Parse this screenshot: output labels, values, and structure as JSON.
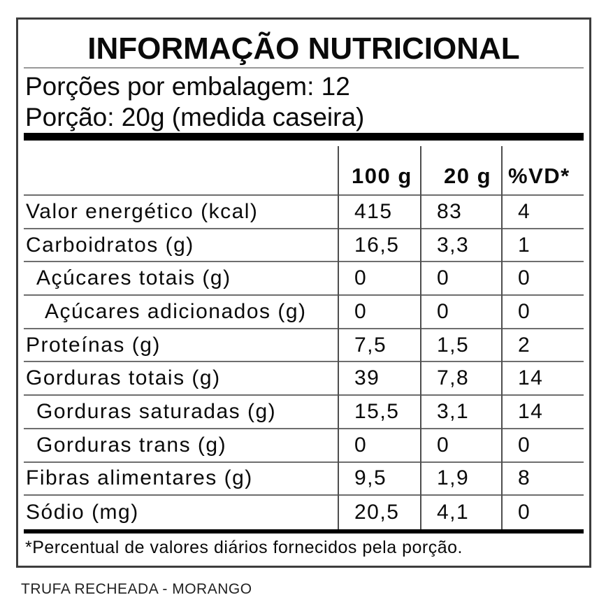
{
  "label": {
    "title": "INFORMAÇÃO NUTRICIONAL",
    "servings_per_package": "Porções por embalagem: 12",
    "serving_size": "Porção: 20g (medida caseira)",
    "columns": [
      "100 g",
      "20 g",
      "%VD*"
    ],
    "rows": [
      {
        "label": "Valor energético (kcal)",
        "indent": 0,
        "per_100g": "415",
        "per_20g": "83",
        "vd": "4"
      },
      {
        "label": "Carboidratos (g)",
        "indent": 0,
        "per_100g": "16,5",
        "per_20g": "3,3",
        "vd": "1"
      },
      {
        "label": "Açúcares totais (g)",
        "indent": 1,
        "per_100g": "0",
        "per_20g": "0",
        "vd": "0"
      },
      {
        "label": "Açúcares adicionados (g)",
        "indent": 2,
        "per_100g": "0",
        "per_20g": "0",
        "vd": "0"
      },
      {
        "label": "Proteínas (g)",
        "indent": 0,
        "per_100g": "7,5",
        "per_20g": "1,5",
        "vd": "2"
      },
      {
        "label": "Gorduras totais (g)",
        "indent": 0,
        "per_100g": "39",
        "per_20g": "7,8",
        "vd": "14"
      },
      {
        "label": "Gorduras saturadas (g)",
        "indent": 1,
        "per_100g": "15,5",
        "per_20g": "3,1",
        "vd": "14"
      },
      {
        "label": "Gorduras trans (g)",
        "indent": 1,
        "per_100g": "0",
        "per_20g": "0",
        "vd": "0"
      },
      {
        "label": "Fibras alimentares (g)",
        "indent": 0,
        "per_100g": "9,5",
        "per_20g": "1,9",
        "vd": "8"
      },
      {
        "label": "Sódio (mg)",
        "indent": 0,
        "per_100g": "20,5",
        "per_20g": "4,1",
        "vd": "0"
      }
    ],
    "footnote": "*Percentual de valores diários fornecidos pela porção.",
    "product_name": "TRUFA RECHEADA - MORANGO"
  },
  "colors": {
    "border": "#3d3d3d",
    "separator": "#6e6e6e",
    "divider": "#4e4e4e",
    "bar": "#000000",
    "title_rule": "#999999"
  }
}
